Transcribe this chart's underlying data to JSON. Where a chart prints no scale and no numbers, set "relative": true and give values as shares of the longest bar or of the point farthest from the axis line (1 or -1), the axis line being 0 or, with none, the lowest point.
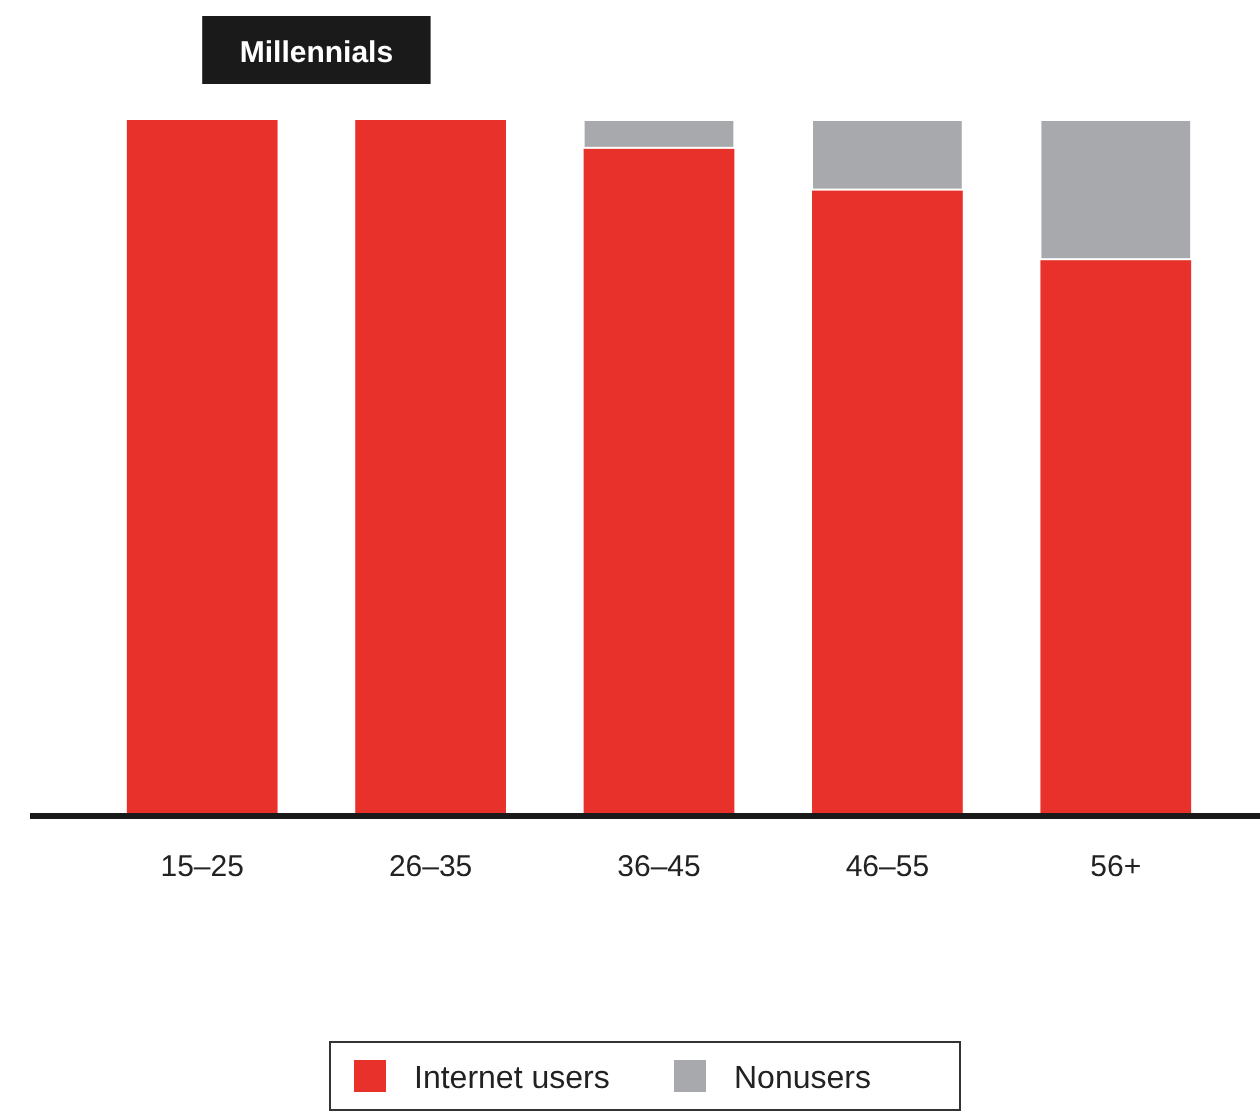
{
  "chart_data": {
    "type": "bar",
    "stacked": true,
    "relative": true,
    "categories": [
      "15–25",
      "26–35",
      "36–45",
      "46–55",
      "56+"
    ],
    "series": [
      {
        "name": "Internet users",
        "color": "#e8312a",
        "values": [
          1,
          1,
          0.96,
          0.9,
          0.8
        ]
      },
      {
        "name": "Nonusers",
        "color": "#a7a9ac",
        "values": [
          0,
          0,
          0.04,
          0.1,
          0.2
        ]
      }
    ],
    "annotations": [
      "Millennials"
    ],
    "legend": "bottom"
  }
}
